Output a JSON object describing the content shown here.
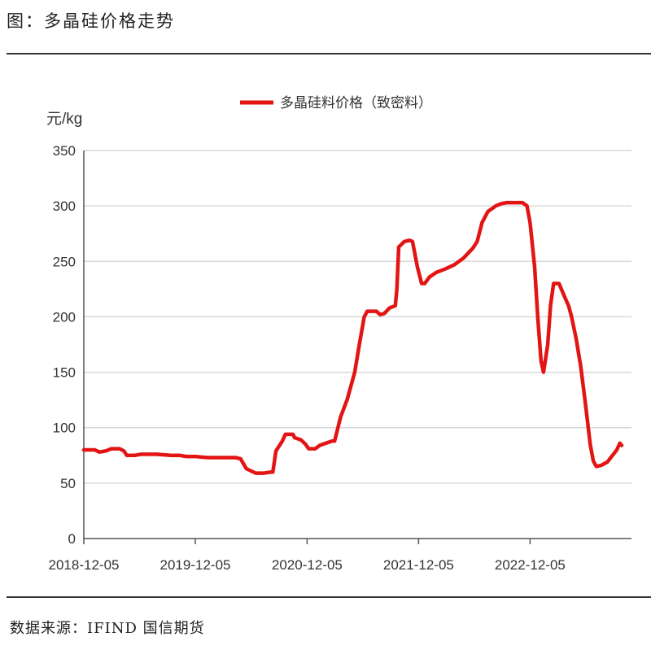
{
  "header": {
    "title": "图：多晶硅价格走势"
  },
  "footer": {
    "source": "数据来源：IFIND 国信期货"
  },
  "colors": {
    "series": "#e31414",
    "grid": "#d9d9d9",
    "axis": "#555555"
  },
  "chart_data": {
    "type": "line",
    "title": "图：多晶硅价格走势",
    "xlabel": "",
    "ylabel": "元/kg",
    "ylim": [
      0,
      350
    ],
    "yticks": [
      0,
      50,
      100,
      150,
      200,
      250,
      300,
      350
    ],
    "xlim": [
      "2018-12-05",
      "2023-10-01"
    ],
    "xticks": [
      "2018-12-05",
      "2019-12-05",
      "2020-12-05",
      "2021-12-05",
      "2022-12-05"
    ],
    "grid": "horizontal",
    "legend_position": "top-center",
    "series": [
      {
        "name": "多晶硅料价格（致密料）",
        "points": [
          [
            "2018-12-05",
            80
          ],
          [
            "2019-01-10",
            80
          ],
          [
            "2019-01-25",
            78
          ],
          [
            "2019-02-15",
            79
          ],
          [
            "2019-03-05",
            81
          ],
          [
            "2019-04-01",
            81
          ],
          [
            "2019-04-15",
            79
          ],
          [
            "2019-04-25",
            75
          ],
          [
            "2019-05-20",
            75
          ],
          [
            "2019-06-10",
            76
          ],
          [
            "2019-07-05",
            76
          ],
          [
            "2019-08-01",
            76
          ],
          [
            "2019-09-15",
            75
          ],
          [
            "2019-10-15",
            75
          ],
          [
            "2019-11-05",
            74
          ],
          [
            "2019-12-05",
            74
          ],
          [
            "2020-01-15",
            73
          ],
          [
            "2020-03-01",
            73
          ],
          [
            "2020-04-15",
            73
          ],
          [
            "2020-05-01",
            72
          ],
          [
            "2020-05-20",
            63
          ],
          [
            "2020-06-20",
            59
          ],
          [
            "2020-07-15",
            59
          ],
          [
            "2020-08-10",
            60
          ],
          [
            "2020-08-15",
            60
          ],
          [
            "2020-08-25",
            79
          ],
          [
            "2020-09-15",
            88
          ],
          [
            "2020-09-25",
            94
          ],
          [
            "2020-10-20",
            94
          ],
          [
            "2020-10-25",
            91
          ],
          [
            "2020-11-15",
            89
          ],
          [
            "2020-11-30",
            85
          ],
          [
            "2020-12-10",
            81
          ],
          [
            "2021-01-01",
            81
          ],
          [
            "2021-01-15",
            84
          ],
          [
            "2021-02-05",
            86
          ],
          [
            "2021-02-25",
            88
          ],
          [
            "2021-03-05",
            88
          ],
          [
            "2021-03-25",
            110
          ],
          [
            "2021-04-15",
            125
          ],
          [
            "2021-04-25",
            135
          ],
          [
            "2021-05-10",
            150
          ],
          [
            "2021-05-25",
            175
          ],
          [
            "2021-06-10",
            200
          ],
          [
            "2021-06-20",
            205
          ],
          [
            "2021-07-20",
            205
          ],
          [
            "2021-08-01",
            202
          ],
          [
            "2021-08-15",
            203
          ],
          [
            "2021-09-01",
            208
          ],
          [
            "2021-09-20",
            210
          ],
          [
            "2021-09-25",
            225
          ],
          [
            "2021-10-01",
            263
          ],
          [
            "2021-10-20",
            268
          ],
          [
            "2021-11-05",
            269
          ],
          [
            "2021-11-15",
            268
          ],
          [
            "2021-12-01",
            245
          ],
          [
            "2021-12-15",
            230
          ],
          [
            "2021-12-25",
            230
          ],
          [
            "2022-01-10",
            236
          ],
          [
            "2022-02-01",
            240
          ],
          [
            "2022-03-01",
            243
          ],
          [
            "2022-04-01",
            247
          ],
          [
            "2022-05-01",
            253
          ],
          [
            "2022-06-01",
            262
          ],
          [
            "2022-06-15",
            268
          ],
          [
            "2022-07-01",
            285
          ],
          [
            "2022-07-20",
            295
          ],
          [
            "2022-08-15",
            300
          ],
          [
            "2022-09-01",
            302
          ],
          [
            "2022-09-20",
            303
          ],
          [
            "2022-10-15",
            303
          ],
          [
            "2022-11-10",
            303
          ],
          [
            "2022-11-25",
            300
          ],
          [
            "2022-12-05",
            285
          ],
          [
            "2022-12-20",
            245
          ],
          [
            "2022-12-30",
            200
          ],
          [
            "2023-01-10",
            160
          ],
          [
            "2023-01-18",
            150
          ],
          [
            "2023-02-01",
            175
          ],
          [
            "2023-02-10",
            210
          ],
          [
            "2023-02-20",
            230
          ],
          [
            "2023-03-10",
            230
          ],
          [
            "2023-03-25",
            220
          ],
          [
            "2023-04-10",
            210
          ],
          [
            "2023-04-20",
            200
          ],
          [
            "2023-05-05",
            180
          ],
          [
            "2023-05-20",
            155
          ],
          [
            "2023-06-05",
            120
          ],
          [
            "2023-06-20",
            85
          ],
          [
            "2023-06-30",
            70
          ],
          [
            "2023-07-10",
            65
          ],
          [
            "2023-07-25",
            66
          ],
          [
            "2023-08-15",
            69
          ],
          [
            "2023-09-01",
            75
          ],
          [
            "2023-09-15",
            80
          ],
          [
            "2023-09-25",
            86
          ],
          [
            "2023-10-01",
            84
          ]
        ]
      }
    ]
  }
}
